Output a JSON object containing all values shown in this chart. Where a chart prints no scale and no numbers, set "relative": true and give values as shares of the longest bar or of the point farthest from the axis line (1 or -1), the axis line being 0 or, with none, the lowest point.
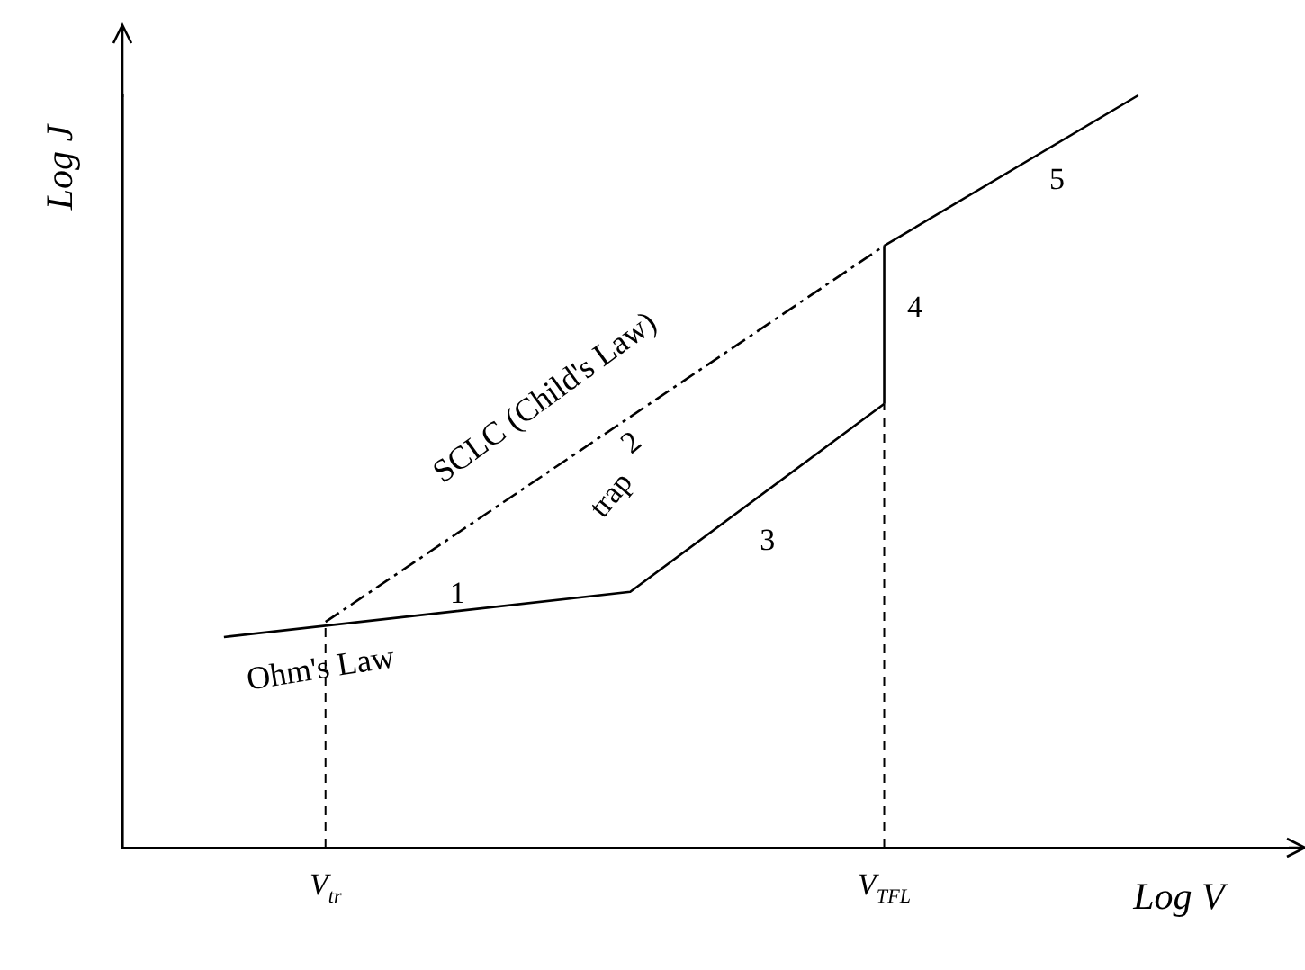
{
  "chart_data": {
    "type": "line",
    "relative": true,
    "xlabel": "Log V",
    "ylabel": "Log J",
    "categories": [
      null,
      null,
      null,
      null,
      "V$_{tr}$",
      null,
      null,
      null,
      null,
      null,
      null,
      null,
      null,
      null,
      null,
      "V$_{TFL}$",
      null,
      null,
      null,
      null,
      null,
      null,
      null,
      null
    ],
    "series": [
      {
        "name": "Ohm's Law",
        "color": "#000000",
        "values": [
          null,
          null,
          0.28,
          null,
          null,
          null,
          null,
          null,
          null,
          null,
          0.34,
          null,
          null,
          null,
          null,
          0.59,
          null,
          null,
          null,
          null,
          null,
          null,
          null,
          null
        ]
      },
      {
        "color": "#000000",
        "values": [
          null,
          null,
          null,
          null,
          null,
          null,
          null,
          null,
          null,
          null,
          null,
          null,
          null,
          null,
          null,
          0.8,
          null,
          null,
          null,
          null,
          1,
          null,
          null,
          null
        ]
      },
      {
        "color": "#000000",
        "x": [
          "V$_{TFL}$",
          "V$_{TFL}$"
        ],
        "values": [
          0.59,
          0.8
        ]
      },
      {
        "name": "SCLC (Child's Law)",
        "color": "#000000",
        "line_style": "dashed",
        "values": [
          null,
          null,
          null,
          null,
          0.3,
          null,
          null,
          null,
          null,
          null,
          null,
          null,
          null,
          null,
          null,
          0.8,
          null,
          null,
          null,
          null,
          null,
          null,
          null,
          null
        ]
      }
    ],
    "ref_lines": [
      {
        "axis": "x",
        "value": "V$_{tr}$",
        "line_style": "dashed",
        "color": "#000000"
      },
      {
        "axis": "x",
        "value": "V$_{TFL}$",
        "line_style": "dashed",
        "color": "#000000"
      }
    ],
    "annotations": [
      "1",
      "2",
      "trap",
      "3",
      "4",
      "5"
    ],
    "marker": "none",
    "grid": false,
    "legend": false
  }
}
